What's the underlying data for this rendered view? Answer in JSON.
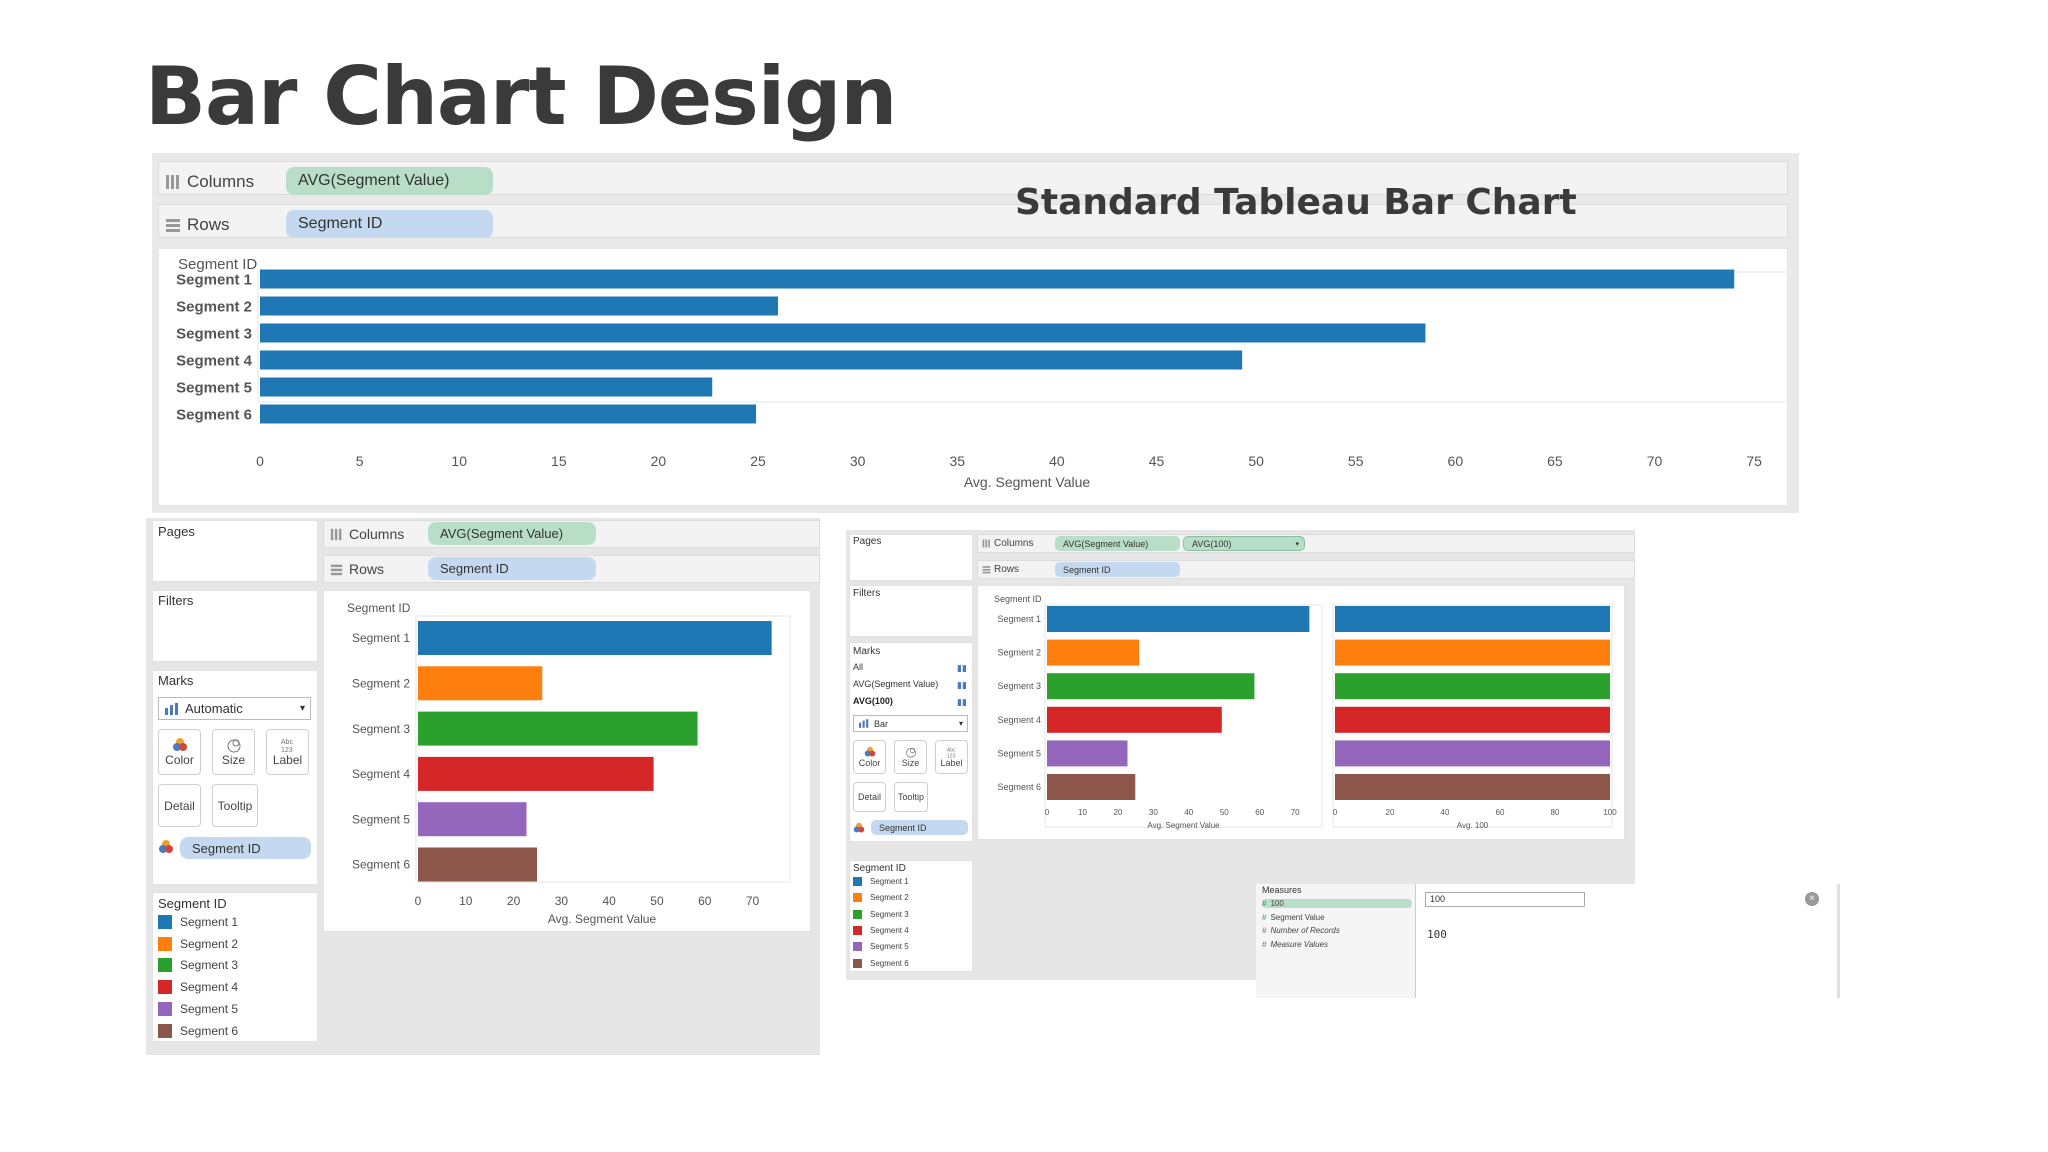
{
  "page": {
    "title": "Bar Chart Design"
  },
  "colors": {
    "blue": "#1f77b4",
    "orange": "#ff7f0e",
    "green": "#2ca02c",
    "red": "#d62728",
    "purple": "#9467bd",
    "brown": "#8c564b",
    "pill_green": "#b9dec7",
    "pill_blue": "#c4d9f0"
  },
  "top": {
    "columns_label": "Columns",
    "rows_label": "Rows",
    "columns_pill": "AVG(Segment Value)",
    "rows_pill": "Segment ID",
    "overlay": "Standard Tableau Bar Chart",
    "header": "Segment ID",
    "xlabel": "Avg. Segment Value"
  },
  "left_ui": {
    "pages": "Pages",
    "filters": "Filters",
    "marks": "Marks",
    "mark_type": "Automatic",
    "color": "Color",
    "size": "Size",
    "label": "Label",
    "detail": "Detail",
    "tooltip": "Tooltip",
    "color_pill": "Segment ID",
    "legend_title": "Segment ID",
    "columns_label": "Columns",
    "rows_label": "Rows",
    "columns_pill": "AVG(Segment Value)",
    "rows_pill": "Segment ID",
    "header": "Segment ID",
    "xlabel": "Avg. Segment Value"
  },
  "right_ui": {
    "pages": "Pages",
    "filters": "Filters",
    "marks": "Marks",
    "marks_all": "All",
    "marks_avg": "AVG(Segment Value)",
    "marks_avg100": "AVG(100)",
    "mark_type": "Bar",
    "color": "Color",
    "size": "Size",
    "label": "Label",
    "detail": "Detail",
    "tooltip": "Tooltip",
    "color_pill": "Segment ID",
    "legend_title": "Segment ID",
    "columns_label": "Columns",
    "rows_label": "Rows",
    "columns_pill": "AVG(Segment Value)",
    "columns_pill2": "AVG(100)",
    "rows_pill": "Segment ID",
    "header": "Segment ID",
    "xlabel1": "Avg. Segment Value",
    "xlabel2": "Avg. 100",
    "measures_title": "Measures",
    "measures": [
      "100",
      "Segment Value",
      "Number of Records",
      "Measure Values"
    ],
    "calc_name": "100",
    "calc_formula": "100"
  },
  "chart_data": [
    {
      "type": "bar",
      "categories": [
        "Segment 1",
        "Segment 2",
        "Segment 3",
        "Segment 4",
        "Segment 5",
        "Segment 6"
      ],
      "values": [
        74,
        26,
        58.5,
        49.3,
        22.7,
        24.9
      ],
      "title": "Standard Tableau Bar Chart",
      "xlabel": "Avg. Segment Value",
      "ylabel": "Segment ID",
      "xticks": [
        0,
        5,
        10,
        15,
        20,
        25,
        30,
        35,
        40,
        45,
        50,
        55,
        60,
        65,
        70,
        75
      ],
      "xlim": [
        0,
        77
      ],
      "grid": false
    },
    {
      "type": "bar",
      "categories": [
        "Segment 1",
        "Segment 2",
        "Segment 3",
        "Segment 4",
        "Segment 5",
        "Segment 6"
      ],
      "values": [
        74,
        26,
        58.5,
        49.3,
        22.7,
        24.9
      ],
      "xlabel": "Avg. Segment Value",
      "ylabel": "Segment ID",
      "xticks": [
        0,
        10,
        20,
        30,
        40,
        50,
        60,
        70
      ],
      "xlim": [
        0,
        77
      ],
      "legend": "left"
    },
    {
      "type": "bar",
      "categories": [
        "Segment 1",
        "Segment 2",
        "Segment 3",
        "Segment 4",
        "Segment 5",
        "Segment 6"
      ],
      "series": [
        {
          "name": "AVG(Segment Value)",
          "values": [
            74,
            26,
            58.5,
            49.3,
            22.7,
            24.9
          ]
        },
        {
          "name": "AVG(100)",
          "values": [
            100,
            100,
            100,
            100,
            100,
            100
          ]
        }
      ],
      "xlabel": "Avg. Segment Value",
      "xlabel2": "Avg. 100",
      "xticks": [
        0,
        10,
        20,
        30,
        40,
        50,
        60,
        70
      ],
      "xticks2": [
        0,
        20,
        40,
        60,
        80,
        100
      ],
      "legend": "left"
    }
  ]
}
